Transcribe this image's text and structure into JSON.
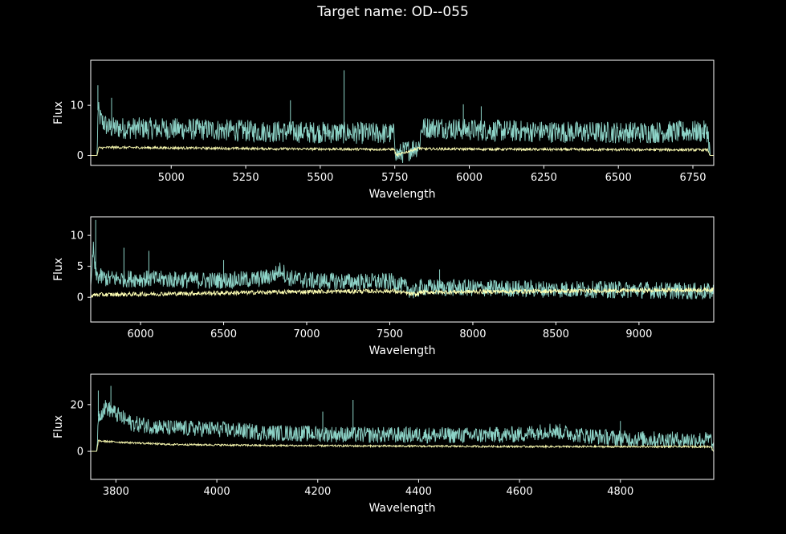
{
  "figure": {
    "suptitle": "Target name: OD--055",
    "background": "#000000",
    "axes_color": "#ffffff"
  },
  "chart_data": [
    {
      "type": "line",
      "xlabel": "Wavelength",
      "ylabel": "Flux",
      "xlim": [
        4730,
        6820
      ],
      "ylim": [
        -2,
        19
      ],
      "xticks": [
        5000,
        5250,
        5500,
        5750,
        6000,
        6250,
        6500,
        6750
      ],
      "yticks": [
        0,
        10
      ],
      "series": [
        {
          "color": "#8dd3c7",
          "noise": 2.2,
          "points": [
            [
              4730,
              0
            ],
            [
              4752,
              0
            ],
            [
              4754,
              9
            ],
            [
              4765,
              7
            ],
            [
              4790,
              5.5
            ],
            [
              4900,
              5.4
            ],
            [
              5100,
              5.2
            ],
            [
              5300,
              4.8
            ],
            [
              5500,
              4.6
            ],
            [
              5700,
              4.4
            ],
            [
              5748,
              4.3
            ],
            [
              5755,
              0
            ],
            [
              5832,
              2
            ],
            [
              5840,
              5.5
            ],
            [
              5900,
              5.6
            ],
            [
              6000,
              5.1
            ],
            [
              6200,
              4.8
            ],
            [
              6400,
              4.6
            ],
            [
              6600,
              4.6
            ],
            [
              6800,
              4.8
            ],
            [
              6808,
              0
            ],
            [
              6820,
              0
            ]
          ],
          "spikes": [
            [
              4754,
              14
            ],
            [
              4800,
              11.5
            ],
            [
              5400,
              11
            ],
            [
              5580,
              17
            ],
            [
              5980,
              10.2
            ],
            [
              6040,
              9.8
            ]
          ]
        },
        {
          "color": "#ffffb3",
          "noise": 0.25,
          "points": [
            [
              4730,
              0
            ],
            [
              4752,
              0
            ],
            [
              4756,
              1.5
            ],
            [
              4800,
              1.6
            ],
            [
              5000,
              1.5
            ],
            [
              5400,
              1.3
            ],
            [
              5748,
              1.2
            ],
            [
              5755,
              0
            ],
            [
              5832,
              1.5
            ],
            [
              5840,
              1.3
            ],
            [
              6200,
              1.2
            ],
            [
              6800,
              1.1
            ],
            [
              6808,
              0
            ],
            [
              6820,
              0
            ]
          ],
          "spikes": []
        }
      ]
    },
    {
      "type": "line",
      "xlabel": "Wavelength",
      "ylabel": "Flux",
      "xlim": [
        5700,
        9450
      ],
      "ylim": [
        -4,
        13
      ],
      "xticks": [
        6000,
        6500,
        7000,
        7500,
        8000,
        8500,
        9000
      ],
      "yticks": [
        0,
        5,
        10
      ],
      "series": [
        {
          "color": "#8dd3c7",
          "noise": 1.4,
          "points": [
            [
              5700,
              0.5
            ],
            [
              5715,
              8
            ],
            [
              5730,
              3.5
            ],
            [
              5800,
              3
            ],
            [
              6000,
              3
            ],
            [
              6400,
              2.7
            ],
            [
              6700,
              2.9
            ],
            [
              6800,
              3.5
            ],
            [
              6850,
              4.6
            ],
            [
              6880,
              3.2
            ],
            [
              7000,
              2.7
            ],
            [
              7300,
              2.5
            ],
            [
              7520,
              2.5
            ],
            [
              7660,
              0.8
            ],
            [
              7680,
              1.6
            ],
            [
              8000,
              1.5
            ],
            [
              8500,
              1.3
            ],
            [
              9000,
              1.2
            ],
            [
              9450,
              0.9
            ]
          ],
          "spikes": [
            [
              5730,
              12.5
            ],
            [
              5900,
              8
            ],
            [
              6050,
              7.5
            ],
            [
              6500,
              6
            ],
            [
              7800,
              4.5
            ]
          ]
        },
        {
          "color": "#ffffb3",
          "noise": 0.35,
          "points": [
            [
              5700,
              0.2
            ],
            [
              5730,
              0.4
            ],
            [
              6000,
              0.5
            ],
            [
              6500,
              0.7
            ],
            [
              7000,
              0.9
            ],
            [
              7520,
              1.0
            ],
            [
              7660,
              0.4
            ],
            [
              7680,
              0.8
            ],
            [
              8000,
              0.9
            ],
            [
              8500,
              1.0
            ],
            [
              9000,
              1.1
            ],
            [
              9450,
              1.2
            ]
          ],
          "spikes": []
        }
      ]
    },
    {
      "type": "line",
      "xlabel": "Wavelength",
      "ylabel": "Flux",
      "xlim": [
        3750,
        4985
      ],
      "ylim": [
        -12,
        33
      ],
      "xticks": [
        3800,
        4000,
        4200,
        4400,
        4600,
        4800
      ],
      "yticks": [
        0,
        20
      ],
      "series": [
        {
          "color": "#8dd3c7",
          "noise": 3.5,
          "points": [
            [
              3750,
              0
            ],
            [
              3762,
              0
            ],
            [
              3765,
              15
            ],
            [
              3780,
              19
            ],
            [
              3800,
              16
            ],
            [
              3830,
              12
            ],
            [
              3900,
              10
            ],
            [
              4000,
              9.5
            ],
            [
              4100,
              8
            ],
            [
              4200,
              7.5
            ],
            [
              4300,
              7
            ],
            [
              4400,
              7
            ],
            [
              4500,
              6.8
            ],
            [
              4600,
              7.2
            ],
            [
              4660,
              9
            ],
            [
              4720,
              7
            ],
            [
              4800,
              5.5
            ],
            [
              4900,
              5
            ],
            [
              4980,
              5
            ],
            [
              4985,
              0
            ]
          ],
          "spikes": [
            [
              3765,
              26
            ],
            [
              3790,
              28
            ],
            [
              4210,
              17
            ],
            [
              4270,
              22
            ],
            [
              4800,
              13
            ]
          ]
        },
        {
          "color": "#ffffb3",
          "noise": 0.4,
          "points": [
            [
              3750,
              0
            ],
            [
              3762,
              0
            ],
            [
              3765,
              4.5
            ],
            [
              3800,
              4
            ],
            [
              3900,
              3
            ],
            [
              4100,
              2.5
            ],
            [
              4400,
              2.2
            ],
            [
              4700,
              2
            ],
            [
              4980,
              2
            ],
            [
              4985,
              0
            ]
          ],
          "spikes": []
        }
      ]
    }
  ]
}
